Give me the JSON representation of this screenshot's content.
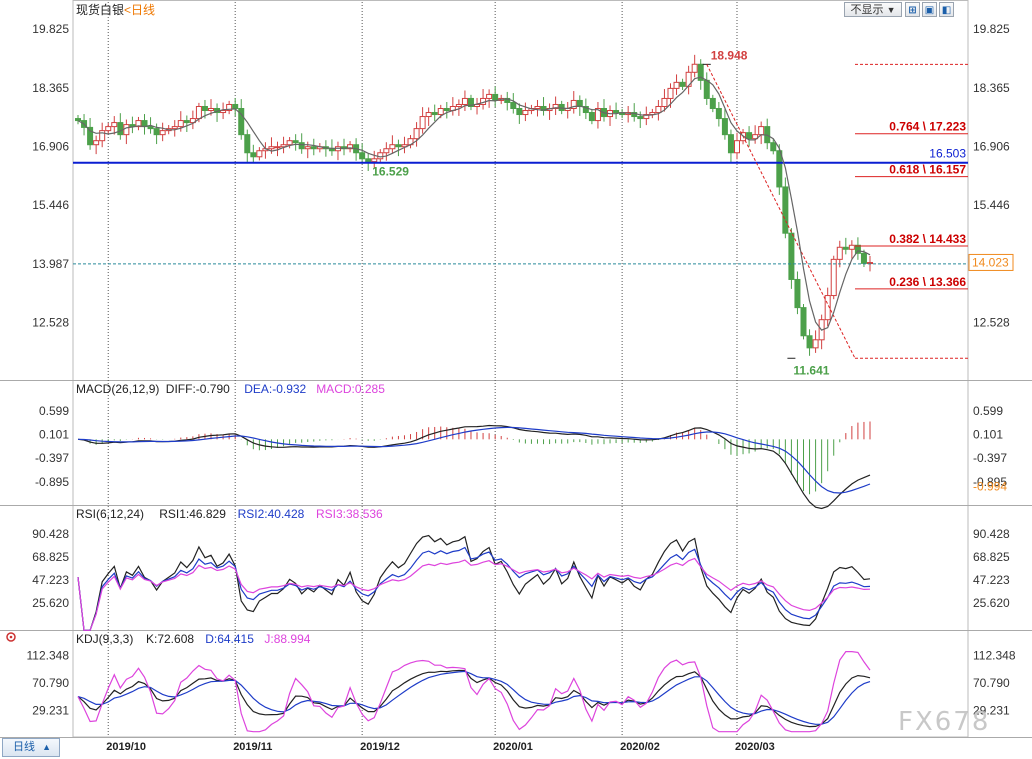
{
  "toolbar": {
    "select_label": "不显示",
    "dropdown_arrow": "▼",
    "icons": [
      "chart-icon",
      "expand-icon",
      "restore-icon"
    ],
    "icon_glyphs": [
      "⊞",
      "▣",
      "◧"
    ]
  },
  "period_button": {
    "label": "日线",
    "arrow": "▲"
  },
  "watermark": "FX678",
  "settings_icon": "settings-icon",
  "chart_data": [
    {
      "type": "candlestick",
      "title": "现货白银",
      "period_tag": "<日线",
      "ylim": [
        11.2,
        20.1
      ],
      "y_ticks": [
        "19.825",
        "18.365",
        "16.906",
        "15.446",
        "13.987",
        "12.528"
      ],
      "x_tick_labels": [
        "2019/10",
        "2019/11",
        "2019/12",
        "2020/01",
        "2020/02",
        "2020/03"
      ],
      "x_tick_index": [
        5,
        26,
        47,
        69,
        90,
        109
      ],
      "current_price": "14.023",
      "current_value": 14.023,
      "dashed_level": 13.987,
      "support_line": {
        "value": 16.503,
        "label": "16.503"
      },
      "annotations": [
        {
          "text": "18.948",
          "value": 18.948,
          "index": 104
        },
        {
          "text": "16.529",
          "value": 16.529,
          "index": 49
        },
        {
          "text": "11.641",
          "value": 11.641,
          "index": 118
        }
      ],
      "fibonacci": [
        {
          "label": "0.764 \\ 17.223",
          "value": 17.223
        },
        {
          "label": "0.618 \\ 16.157",
          "value": 16.157
        },
        {
          "label": "0.382 \\ 14.433",
          "value": 14.433
        },
        {
          "label": "0.236 \\ 13.366",
          "value": 13.366
        }
      ],
      "fib_range": {
        "high": 18.948,
        "low": 11.641
      },
      "closes": [
        17.55,
        17.38,
        16.95,
        17.05,
        17.3,
        17.4,
        17.5,
        17.2,
        17.45,
        17.4,
        17.55,
        17.4,
        17.35,
        17.2,
        17.3,
        17.35,
        17.4,
        17.55,
        17.5,
        17.6,
        17.9,
        17.8,
        17.85,
        17.75,
        17.8,
        17.95,
        17.85,
        17.2,
        16.75,
        16.65,
        16.8,
        16.85,
        16.9,
        16.9,
        16.95,
        17.05,
        17.0,
        16.85,
        16.9,
        16.85,
        16.9,
        16.85,
        16.8,
        16.9,
        16.85,
        16.95,
        16.75,
        16.6,
        16.53,
        16.6,
        16.75,
        16.85,
        16.95,
        16.9,
        16.95,
        17.1,
        17.35,
        17.65,
        17.75,
        17.7,
        17.85,
        17.8,
        17.9,
        17.95,
        18.1,
        17.9,
        17.95,
        18.1,
        18.2,
        18.05,
        18.1,
        18.0,
        17.85,
        17.7,
        17.8,
        17.85,
        17.9,
        17.8,
        17.85,
        17.95,
        17.8,
        17.85,
        18.05,
        17.9,
        17.75,
        17.55,
        17.85,
        17.65,
        17.8,
        17.75,
        17.7,
        17.75,
        17.65,
        17.6,
        17.7,
        17.75,
        17.9,
        18.1,
        18.35,
        18.5,
        18.4,
        18.75,
        18.95,
        18.55,
        18.1,
        17.85,
        17.6,
        17.2,
        16.75,
        17.05,
        17.25,
        17.1,
        17.2,
        17.4,
        17.0,
        16.8,
        15.9,
        14.75,
        13.6,
        12.9,
        12.2,
        11.9,
        12.1,
        12.6,
        13.2,
        14.1,
        14.4,
        14.35,
        14.45,
        14.25,
        14.0,
        14.02
      ],
      "highs_offset": 0.18,
      "lows_offset": 0.18,
      "ma_line": true
    },
    {
      "type": "line",
      "title": "MACD(26,12,9)",
      "legend": [
        {
          "name": "DIFF",
          "text": "DIFF:-0.790",
          "color": "#222222"
        },
        {
          "name": "DEA",
          "text": "DEA:-0.932",
          "color": "#1e3cc8"
        },
        {
          "name": "MACD",
          "text": "MACD:0.285",
          "color": "#dd44dd"
        }
      ],
      "ylim": [
        -1.3,
        0.85
      ],
      "y_ticks": [
        "0.599",
        "0.101",
        "-0.397",
        "-0.895"
      ],
      "current_label": "-0.994",
      "current_value": -0.994
    },
    {
      "type": "line",
      "title": "RSI(6,12,24)",
      "legend": [
        {
          "name": "RSI1",
          "text": "RSI1:46.829",
          "color": "#222222"
        },
        {
          "name": "RSI2",
          "text": "RSI2:40.428",
          "color": "#1e3cc8"
        },
        {
          "name": "RSI3",
          "text": "RSI3:38.536",
          "color": "#dd44dd"
        }
      ],
      "ylim": [
        4,
        100
      ],
      "y_ticks": [
        "90.428",
        "68.825",
        "47.223",
        "25.620"
      ]
    },
    {
      "type": "line",
      "title": "KDJ(9,3,3)",
      "legend": [
        {
          "name": "K",
          "text": "K:72.608",
          "color": "#222222"
        },
        {
          "name": "D",
          "text": "D:64.415",
          "color": "#1e3cc8"
        },
        {
          "name": "J",
          "text": "J:88.994",
          "color": "#dd44dd"
        }
      ],
      "ylim": [
        -5,
        122
      ],
      "y_ticks": [
        "112.348",
        "70.790",
        "29.231"
      ]
    }
  ],
  "colors": {
    "up": "#d24040",
    "down": "#4ca04a",
    "support": "#0a1ed2",
    "fib_line": "#dd2222",
    "axis_text": "#333333",
    "price_tag": "#f08a1e",
    "grid": "#555555",
    "title_text": "#222222",
    "period_tag": "#ee7700"
  }
}
